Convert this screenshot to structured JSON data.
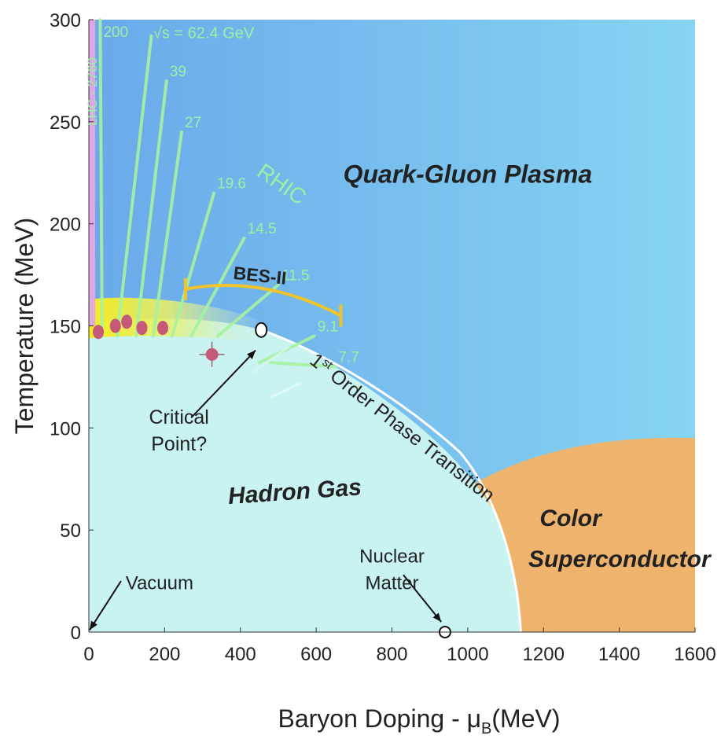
{
  "chart_data": {
    "type": "scatter",
    "xlabel_main": "Baryon Doping - μ",
    "xlabel_sub": "B",
    "xlabel_tail": "(MeV)",
    "ylabel": "Temperature (MeV)",
    "xlim": [
      0,
      1600
    ],
    "ylim": [
      0,
      300
    ],
    "x_ticks": [
      "0",
      "200",
      "400",
      "600",
      "800",
      "1000",
      "1200",
      "1400",
      "1600"
    ],
    "y_ticks": [
      "0",
      "50",
      "100",
      "150",
      "200",
      "250",
      "300"
    ],
    "regions": {
      "qgp": "Quark-Gluon Plasma",
      "hadron": "Hadron Gas",
      "color_sc_1": "Color",
      "color_sc_2": "Superconductor"
    },
    "labels": {
      "lhc": "LHC - 2760",
      "rhic": "RHIC",
      "bes": "BES-II",
      "sqrt_s": "√s = 62.4 GeV",
      "transition_prefix": "1",
      "transition_sup": "st",
      "transition_rest": " Order Phase Transition",
      "critical_1": "Critical",
      "critical_2": "Point?",
      "nuclear_1": "Nuclear",
      "nuclear_2": "Matter",
      "vacuum": "Vacuum"
    },
    "energies": [
      {
        "label": "200",
        "x": 30,
        "y": 300,
        "base": 35
      },
      {
        "label": "",
        "x": 165,
        "y": 292,
        "base": 75
      },
      {
        "label": "39",
        "x": 205,
        "y": 270,
        "base": 125
      },
      {
        "label": "27",
        "x": 245,
        "y": 245,
        "base": 170
      },
      {
        "label": "19.6",
        "x": 330,
        "y": 215,
        "base": 220
      },
      {
        "label": "14.5",
        "x": 410,
        "y": 193,
        "base": 270
      },
      {
        "label": "11.5",
        "x": 500,
        "y": 170,
        "base": 340
      },
      {
        "label": "9.1",
        "x": 595,
        "y": 145,
        "base": 450
      },
      {
        "label": "7.7",
        "x": 650,
        "y": 130,
        "base": 480
      }
    ],
    "freezeout_points": [
      {
        "x": 25,
        "T": 147
      },
      {
        "x": 70,
        "T": 150
      },
      {
        "x": 100,
        "T": 152
      },
      {
        "x": 140,
        "T": 149
      },
      {
        "x": 195,
        "T": 149
      }
    ],
    "critical_point_candidate": {
      "x": 325,
      "T": 136
    },
    "critical_point": {
      "x": 455,
      "T": 148
    },
    "nuclear_matter": {
      "x": 940,
      "T": 0
    },
    "bes2_range": [
      255,
      665
    ],
    "colors": {
      "qgp": "#72b6ee",
      "hadron": "#c9f3f1",
      "color_sc": "#eeb36c",
      "freezeout": "#c65878",
      "green": "#a6f2a1",
      "yellow": "#f2e21e",
      "bes": "#f0c42a",
      "lhc": "#e3a6e4"
    }
  }
}
